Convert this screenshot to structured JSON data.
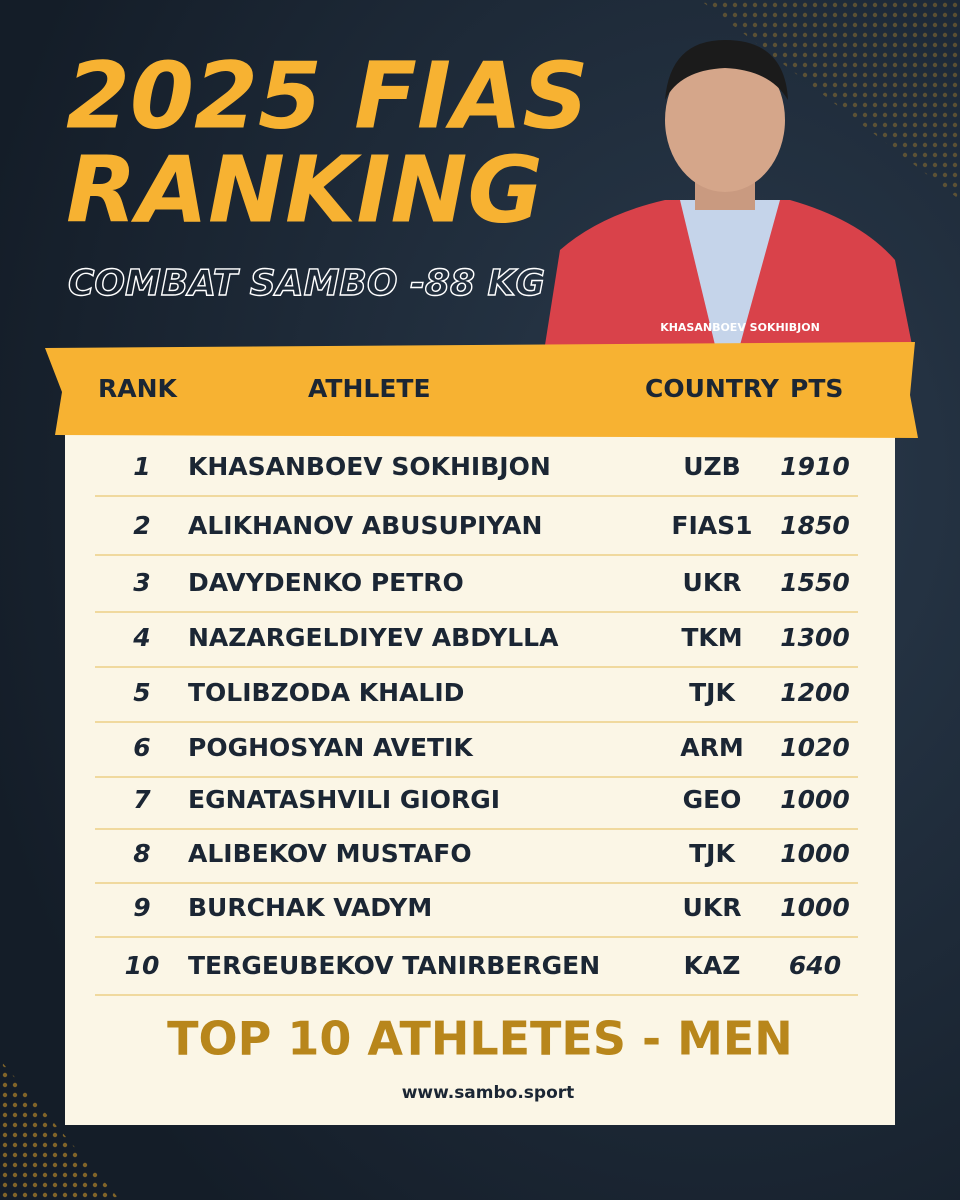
{
  "title": [
    "2025 FIAS",
    "RANKING"
  ],
  "subtitle": "COMBAT SAMBO -88 KG",
  "photo_caption": "KHASANBOEV SOKHIBJON",
  "table": {
    "headers": [
      "RANK",
      "ATHLETE",
      "COUNTRY",
      "PTS"
    ],
    "rows": [
      [
        1,
        "KHASANBOEV SOKHIBJON",
        "UZB",
        1910
      ],
      [
        2,
        "ALIKHANOV ABUSUPIYAN",
        "FIAS1",
        1850
      ],
      [
        3,
        "DAVYDENKO PETRO",
        "UKR",
        1550
      ],
      [
        4,
        "NAZARGELDIYEV ABDYLLA",
        "TKM",
        1300
      ],
      [
        5,
        "TOLIBZODA KHALID",
        "TJK",
        1200
      ],
      [
        6,
        "POGHOSYAN AVETIK",
        "ARM",
        1020
      ],
      [
        7,
        "EGNATASHVILI GIORGI",
        "GEO",
        1000
      ],
      [
        8,
        "ALIBEKOV MUSTAFO",
        "TJK",
        1000
      ],
      [
        9,
        "BURCHAK VADYM",
        "UKR",
        1000
      ],
      [
        10,
        "TERGEUBEKOV TANIRBERGEN",
        "KAZ",
        640
      ]
    ]
  },
  "footer": {
    "title": "TOP 10 ATHLETES - MEN",
    "website": "www.sambo.sport"
  }
}
